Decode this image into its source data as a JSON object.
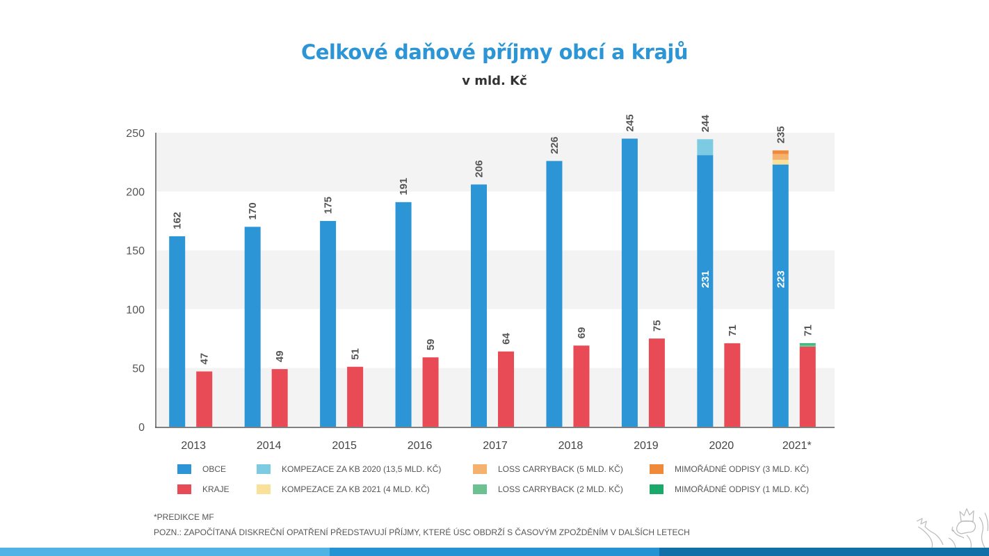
{
  "title": "Celkové daňové příjmy obcí a krajů",
  "subtitle": "v mld. Kč",
  "chart_data": {
    "type": "bar",
    "title": "Celkové daňové příjmy obcí a krajů",
    "subtitle": "v mld. Kč",
    "xlabel": "",
    "ylabel": "",
    "ylim": [
      0,
      250
    ],
    "yticks": [
      0,
      50,
      100,
      150,
      200,
      250
    ],
    "grid": "alternating bands",
    "categories": [
      "2013",
      "2014",
      "2015",
      "2016",
      "2017",
      "2018",
      "2019",
      "2020",
      "2021*"
    ],
    "series": [
      {
        "name": "OBCE",
        "color": "#2b95d6",
        "stack": "obce",
        "values": [
          162,
          170,
          175,
          191,
          206,
          226,
          245,
          231,
          223
        ]
      },
      {
        "name": "KOMPEZACE ZA KB 2020 (13,5 MLD. KČ)",
        "color": "#7ccbe2",
        "stack": "obce",
        "values": [
          0,
          0,
          0,
          0,
          0,
          0,
          0,
          13.5,
          0
        ]
      },
      {
        "name": "KOMPEZACE ZA KB 2021 (4 MLD. KČ)",
        "color": "#fbe09a",
        "stack": "obce",
        "values": [
          0,
          0,
          0,
          0,
          0,
          0,
          0,
          0,
          4
        ]
      },
      {
        "name": "LOSS CARRYBACK (5 MLD. KČ)",
        "color": "#f5b26e",
        "stack": "obce",
        "values": [
          0,
          0,
          0,
          0,
          0,
          0,
          0,
          0,
          5
        ]
      },
      {
        "name": "MIMOŘÁDNÉ ODPISY (3 MLD. KČ)",
        "color": "#ef8a3a",
        "stack": "obce",
        "values": [
          0,
          0,
          0,
          0,
          0,
          0,
          0,
          0,
          3
        ]
      },
      {
        "name": "KRAJE",
        "color": "#e84b55",
        "stack": "kraje",
        "values": [
          47,
          49,
          51,
          59,
          64,
          69,
          75,
          71,
          68
        ]
      },
      {
        "name": "LOSS CARRYBACK (2 MLD. KČ)",
        "color": "#6cc190",
        "stack": "kraje",
        "values": [
          0,
          0,
          0,
          0,
          0,
          0,
          0,
          0,
          2
        ]
      },
      {
        "name": "MIMOŘÁDNÉ ODPISY (1 MLD. KČ)",
        "color": "#1aa86b",
        "stack": "kraje",
        "values": [
          0,
          0,
          0,
          0,
          0,
          0,
          0,
          0,
          1
        ]
      }
    ],
    "totals_obce": [
      "162",
      "170",
      "175",
      "191",
      "206",
      "226",
      "245",
      "244",
      "235"
    ],
    "totals_kraje": [
      "47",
      "49",
      "51",
      "59",
      "64",
      "69",
      "75",
      "71",
      "71"
    ],
    "inner_labels_obce": [
      "",
      "",
      "",
      "",
      "",
      "",
      "",
      "231",
      "223"
    ],
    "legend_position": "bottom"
  },
  "legend": [
    {
      "label": "OBCE",
      "color": "#2b95d6"
    },
    {
      "label": "KRAJE",
      "color": "#e84b55"
    },
    {
      "label": "KOMPEZACE ZA KB 2020 (13,5 MLD. KČ)",
      "color": "#7ccbe2"
    },
    {
      "label": "KOMPEZACE ZA KB 2021 (4 MLD. KČ)",
      "color": "#fbe09a"
    },
    {
      "label": "LOSS CARRYBACK (5 MLD. KČ)",
      "color": "#f5b26e"
    },
    {
      "label": "LOSS CARRYBACK (2 MLD. KČ)",
      "color": "#6cc190"
    },
    {
      "label": "MIMOŘÁDNÉ ODPISY (3 MLD. KČ)",
      "color": "#ef8a3a"
    },
    {
      "label": "MIMOŘÁDNÉ ODPISY (1 MLD. KČ)",
      "color": "#1aa86b"
    }
  ],
  "notes": {
    "prediction": "*PREDIKCE MF",
    "remark": "POZN.: ZAPOČÍTANÁ DISKREČNÍ OPATŘENÍ PŘEDSTAVUJÍ PŘÍJMY, KTERÉ ÚSC OBDRŽÍ S ČASOVÝM ZPOŽDĚNÍM V DALŠÍCH LETECH"
  },
  "logo": {
    "name": "lion-emblem-icon"
  }
}
